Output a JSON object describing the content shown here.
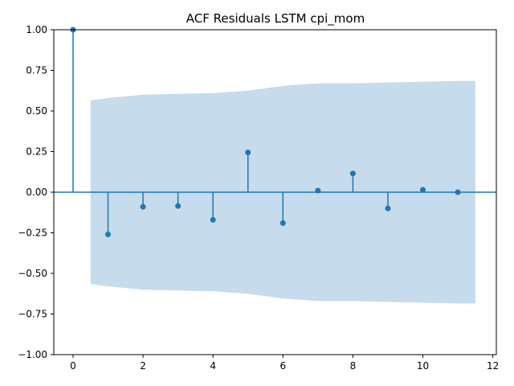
{
  "chart_data": {
    "type": "scatter",
    "title": "ACF Residuals LSTM cpi_mom",
    "xlabel": "",
    "ylabel": "",
    "xlim": [
      -0.55,
      12.1
    ],
    "ylim": [
      -1.0,
      1.0
    ],
    "x_ticks": [
      0,
      2,
      4,
      6,
      8,
      10,
      12
    ],
    "y_ticks": [
      1.0,
      0.75,
      0.5,
      0.25,
      0.0,
      -0.25,
      -0.5,
      -0.75,
      -1.0
    ],
    "x_tick_labels": [
      "0",
      "2",
      "4",
      "6",
      "8",
      "10",
      "12"
    ],
    "y_tick_labels": [
      "1.00",
      "0.75",
      "0.50",
      "0.25",
      "0.00",
      "−0.25",
      "−0.50",
      "−0.75",
      "−1.00"
    ],
    "lags": [
      0,
      1,
      2,
      3,
      4,
      5,
      6,
      7,
      8,
      9,
      10,
      11
    ],
    "acf": [
      1.0,
      -0.26,
      -0.09,
      -0.085,
      -0.17,
      0.245,
      -0.19,
      0.01,
      0.115,
      -0.1,
      0.015,
      0.0
    ],
    "confidence_band": {
      "x": [
        0.5,
        1,
        2,
        3,
        4,
        5,
        6,
        7,
        8,
        9,
        10,
        11,
        11.5
      ],
      "upper": [
        0.565,
        0.58,
        0.6,
        0.605,
        0.61,
        0.625,
        0.655,
        0.67,
        0.67,
        0.675,
        0.68,
        0.685,
        0.685
      ],
      "lower": [
        -0.565,
        -0.58,
        -0.6,
        -0.605,
        -0.61,
        -0.625,
        -0.655,
        -0.67,
        -0.67,
        -0.675,
        -0.68,
        -0.685,
        -0.685
      ]
    },
    "grid": false,
    "colors": {
      "stem": "#1f77b4",
      "marker": "#1f77b4",
      "zero_line": "#1f77b4",
      "band": "#c6dbec"
    }
  }
}
